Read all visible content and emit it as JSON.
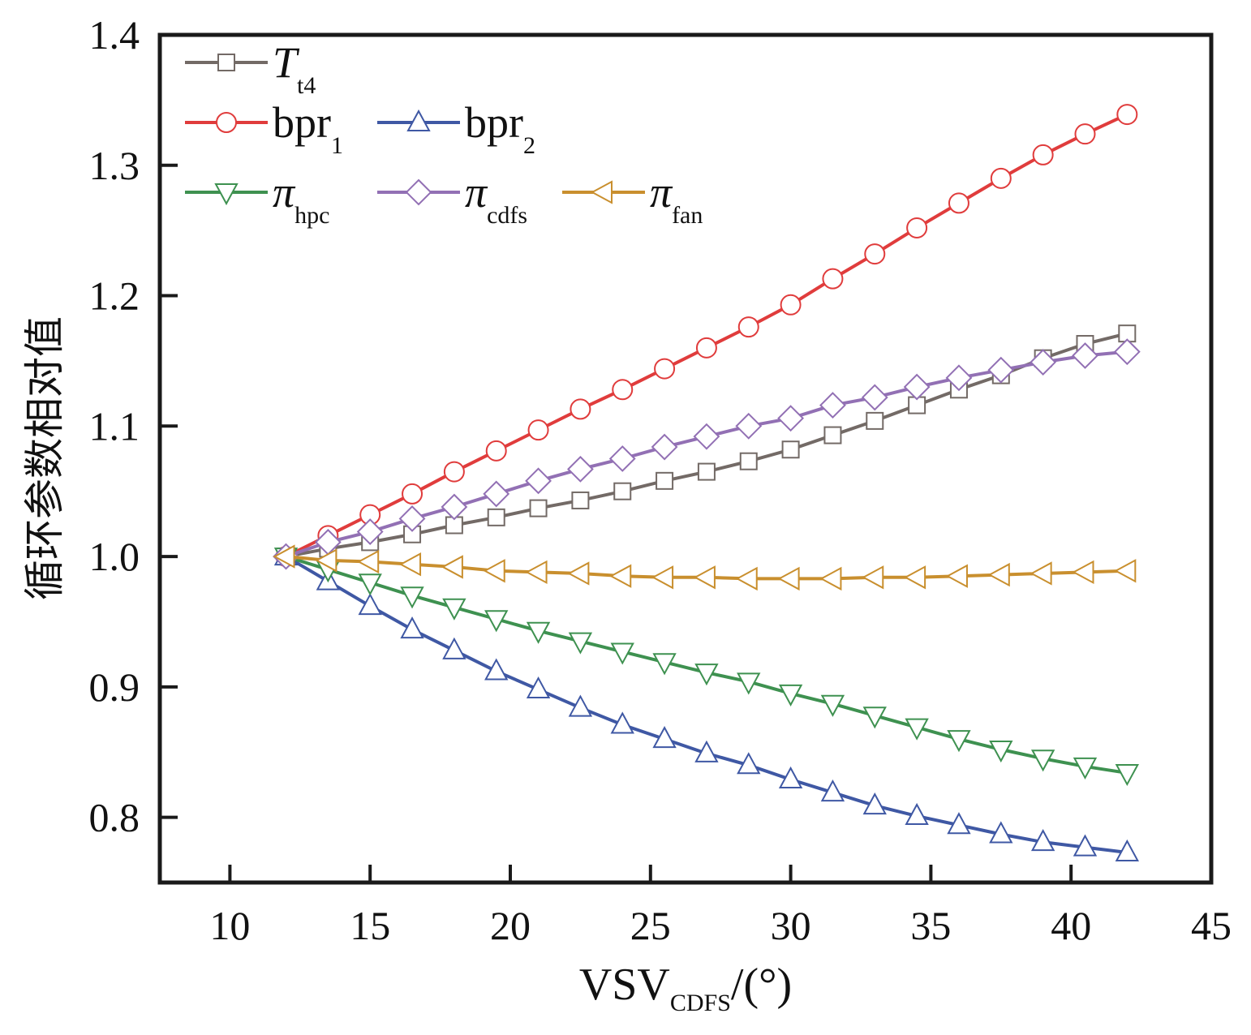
{
  "chart_data": {
    "type": "line",
    "title": "",
    "xlabel": "VSV",
    "xlabel_sub": "CDFS",
    "xlabel_suffix": "/(°)",
    "ylabel": "循环参数相对值",
    "xlim": [
      7.5,
      45
    ],
    "ylim": [
      0.75,
      1.4
    ],
    "xticks": [
      10,
      15,
      20,
      25,
      30,
      35,
      40,
      45
    ],
    "yticks": [
      0.8,
      0.9,
      1.0,
      1.1,
      1.2,
      1.3,
      1.4
    ],
    "xtick_labels": [
      "10",
      "15",
      "20",
      "25",
      "30",
      "35",
      "40",
      "45"
    ],
    "ytick_labels": [
      "0.8",
      "0.9",
      "1.0",
      "1.1",
      "1.2",
      "1.3",
      "1.4"
    ],
    "grid": false,
    "legend_position": "top-left",
    "x": [
      12,
      13.5,
      15,
      16.5,
      18,
      19.5,
      21,
      22.5,
      24,
      25.5,
      27,
      28.5,
      30,
      31.5,
      33,
      34.5,
      36,
      37.5,
      39,
      40.5,
      42
    ],
    "series": [
      {
        "name": "T",
        "sub": "t4",
        "italic": true,
        "color": "#736a66",
        "marker": "square",
        "values": [
          1.0,
          1.006,
          1.011,
          1.017,
          1.024,
          1.03,
          1.037,
          1.043,
          1.05,
          1.058,
          1.065,
          1.073,
          1.082,
          1.093,
          1.104,
          1.116,
          1.128,
          1.139,
          1.152,
          1.163,
          1.171
        ]
      },
      {
        "name": "bpr",
        "sub": "1",
        "italic": false,
        "color": "#e03c3c",
        "marker": "circle",
        "values": [
          1.0,
          1.016,
          1.032,
          1.048,
          1.065,
          1.081,
          1.097,
          1.113,
          1.128,
          1.144,
          1.16,
          1.176,
          1.193,
          1.213,
          1.232,
          1.252,
          1.271,
          1.29,
          1.308,
          1.324,
          1.339
        ]
      },
      {
        "name": "bpr",
        "sub": "2",
        "italic": false,
        "color": "#3f58a4",
        "marker": "triangle-up",
        "values": [
          1.0,
          0.981,
          0.962,
          0.944,
          0.928,
          0.912,
          0.898,
          0.884,
          0.871,
          0.86,
          0.849,
          0.84,
          0.829,
          0.819,
          0.809,
          0.801,
          0.794,
          0.787,
          0.781,
          0.777,
          0.773
        ]
      },
      {
        "name": "π",
        "sub": "hpc",
        "italic": true,
        "color": "#3e9150",
        "marker": "triangle-down",
        "values": [
          1.0,
          0.99,
          0.98,
          0.97,
          0.961,
          0.952,
          0.943,
          0.935,
          0.927,
          0.919,
          0.911,
          0.904,
          0.895,
          0.887,
          0.878,
          0.869,
          0.86,
          0.852,
          0.845,
          0.839,
          0.834
        ]
      },
      {
        "name": "π",
        "sub": "cdfs",
        "italic": true,
        "color": "#9270b4",
        "marker": "diamond",
        "values": [
          1.0,
          1.011,
          1.019,
          1.029,
          1.038,
          1.048,
          1.058,
          1.067,
          1.075,
          1.084,
          1.092,
          1.1,
          1.106,
          1.116,
          1.122,
          1.13,
          1.137,
          1.143,
          1.149,
          1.154,
          1.157
        ]
      },
      {
        "name": "π",
        "sub": "fan",
        "italic": true,
        "color": "#c98f2e",
        "marker": "triangle-left",
        "values": [
          1.0,
          0.997,
          0.996,
          0.994,
          0.992,
          0.989,
          0.988,
          0.987,
          0.985,
          0.984,
          0.984,
          0.983,
          0.983,
          0.983,
          0.984,
          0.984,
          0.985,
          0.986,
          0.987,
          0.988,
          0.989
        ]
      }
    ]
  }
}
